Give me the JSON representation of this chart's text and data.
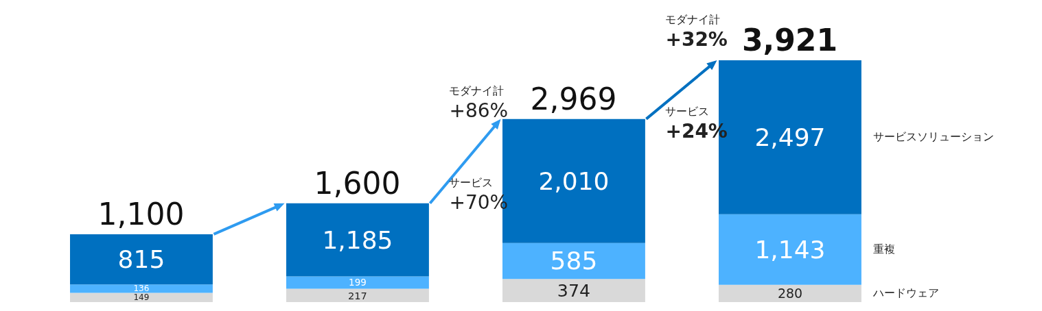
{
  "chart_data": {
    "type": "bar",
    "stacked": true,
    "categories": [
      null,
      null,
      null,
      null
    ],
    "series": [
      {
        "name": "ハードウェア",
        "color": "#d9d9d9",
        "values": [
          149,
          217,
          374,
          280
        ],
        "value_labels": [
          "149",
          "217",
          "374",
          "280"
        ]
      },
      {
        "name": "重複",
        "color": "#4db2ff",
        "values": [
          136,
          199,
          585,
          1143
        ],
        "value_labels": [
          "136",
          "199",
          "585",
          "1,143"
        ]
      },
      {
        "name": "サービスソリューション",
        "color": "#0070c0",
        "values": [
          815,
          1185,
          2010,
          2497
        ],
        "value_labels": [
          "815",
          "1,185",
          "2,010",
          "2,497"
        ]
      }
    ],
    "totals": [
      "1,100",
      "1,600",
      "2,969",
      "3,921"
    ],
    "legend": "right",
    "annotations": [
      "モダナイ計\n+86%",
      "サービス\n+70%",
      "モダナイ計\n+32%",
      "サービス\n+24%"
    ]
  }
}
